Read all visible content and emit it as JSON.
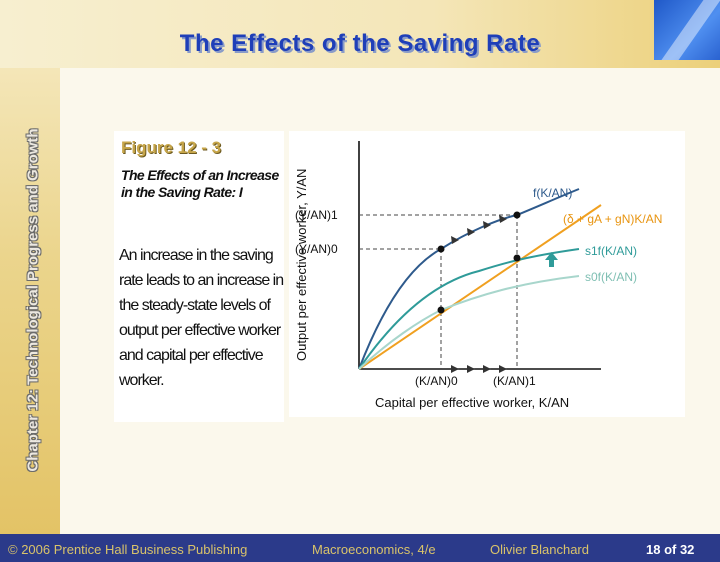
{
  "slide": {
    "title": "The Effects of the Saving Rate",
    "side_text": "Chapter 12: Technological Progress and Growth",
    "figure_label": "Figure 12 - 3",
    "figure_subtitle": "The Effects of an Increase in the Saving Rate: I",
    "figure_body": "An increase in the saving rate leads to an increase in the steady-state levels of output per effective worker and capital per effective worker.",
    "footer": {
      "copyright": "© 2006 Prentice Hall Business Publishing",
      "book": "Macroeconomics, 4/e",
      "author": "Olivier Blanchard",
      "page": "18 of 32"
    }
  },
  "colors": {
    "title": "#1f3fb8",
    "f_curve": "#2e5a8c",
    "s1_curve": "#2f9b99",
    "s0_curve": "#a8d6cc",
    "investment_line": "#f0a020",
    "arrow_up": "#2f9b99",
    "footer_bg": "#2b3a8a"
  },
  "chart_data": {
    "type": "line",
    "xlabel": "Capital per effective worker, K/AN",
    "ylabel": "Output per effective worker, Y/AN",
    "series": [
      {
        "name": "f(K/AN)",
        "role": "f"
      },
      {
        "name": "(δ + gA + gN)K/AN",
        "role": "line"
      },
      {
        "name": "s1f(K/AN)",
        "role": "s1"
      },
      {
        "name": "s0f(K/AN)",
        "role": "s0"
      }
    ],
    "x_ticks": [
      "(K/AN)0",
      "(K/AN)1"
    ],
    "y_ticks": [
      "(Y/AN)0",
      "(Y/AN)1"
    ]
  }
}
